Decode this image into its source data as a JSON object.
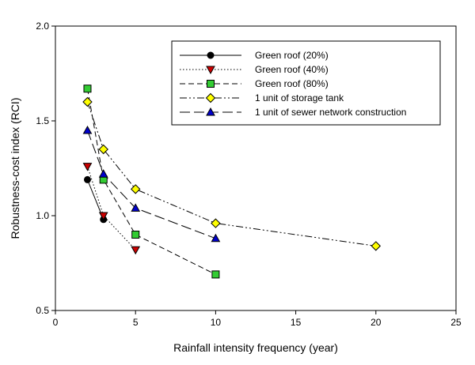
{
  "chart_data": {
    "type": "line",
    "title": "",
    "xlabel": "Rainfall intensity frequency (year)",
    "ylabel": "Robustness-cost index (RCI)",
    "xlim": [
      0,
      25
    ],
    "ylim": [
      0.5,
      2.0
    ],
    "xticks": [
      "0",
      "5",
      "10",
      "15",
      "20",
      "25"
    ],
    "yticks": [
      "0.5",
      "1.0",
      "1.5",
      "2.0"
    ],
    "grid": false,
    "legend_position": "top-right",
    "series": [
      {
        "name": "Green roof (20%)",
        "marker": "circle",
        "marker_color": "#000000",
        "dash": "solid",
        "x": [
          2,
          3
        ],
        "y": [
          1.19,
          0.98
        ]
      },
      {
        "name": "Green roof (40%)",
        "marker": "triangle-down",
        "marker_color": "#cc0000",
        "dash": "dotted",
        "x": [
          2,
          3,
          5
        ],
        "y": [
          1.26,
          1.0,
          0.82
        ]
      },
      {
        "name": "Green roof (80%)",
        "marker": "square",
        "marker_color": "#33cc33",
        "dash": "dashed",
        "x": [
          2,
          3,
          5,
          10
        ],
        "y": [
          1.67,
          1.19,
          0.9,
          0.69
        ]
      },
      {
        "name": "1 unit of storage tank",
        "marker": "diamond",
        "marker_color": "#ffff00",
        "dash": "dashdotdot",
        "x": [
          2,
          3,
          5,
          10,
          20
        ],
        "y": [
          1.6,
          1.35,
          1.14,
          0.96,
          0.84
        ]
      },
      {
        "name": "1 unit of sewer network construction",
        "marker": "triangle-up",
        "marker_color": "#0000cc",
        "dash": "longdash",
        "x": [
          2,
          3,
          5,
          10
        ],
        "y": [
          1.45,
          1.22,
          1.04,
          0.88
        ]
      }
    ]
  }
}
